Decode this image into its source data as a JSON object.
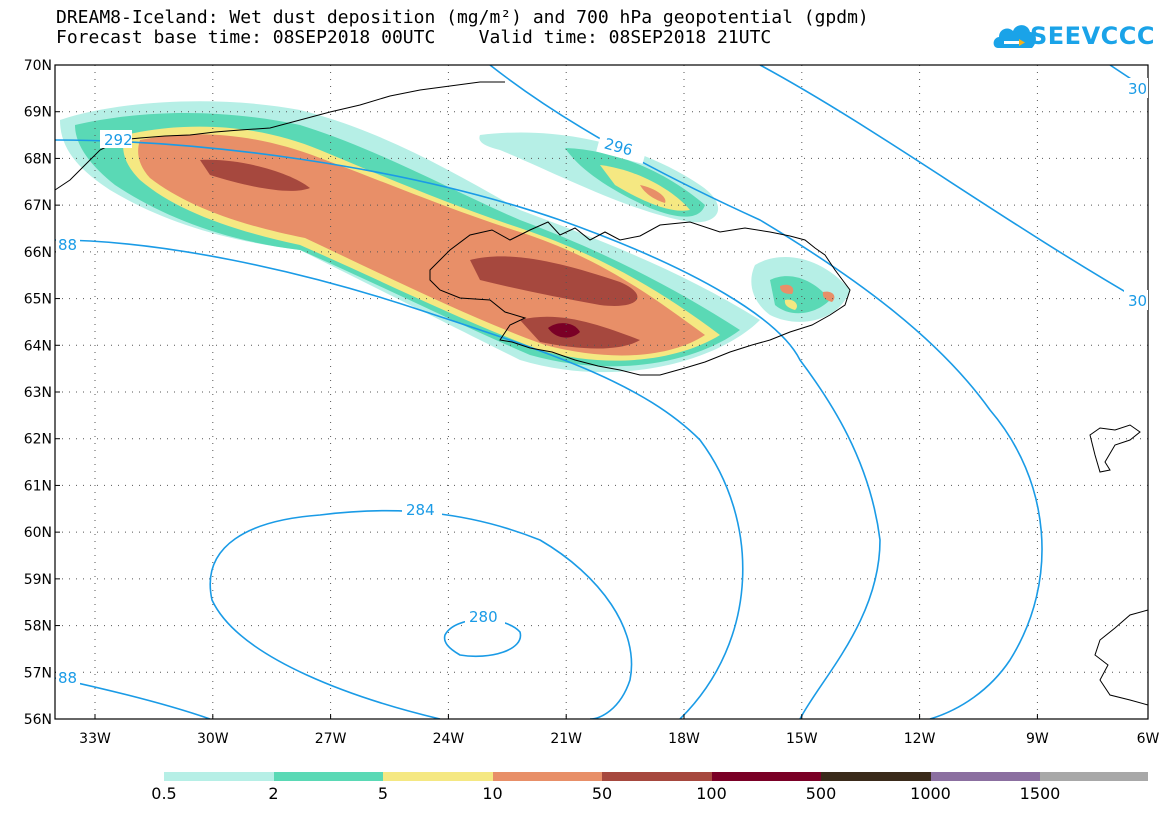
{
  "title": {
    "line1": "DREAM8-Iceland: Wet dust deposition (mg/m²) and 700 hPa geopotential (gpdm)",
    "line2": "Forecast base time: 08SEP2018 00UTC    Valid time: 08SEP2018 21UTC"
  },
  "logo": {
    "text": "SEEVCCC",
    "icon": "cloud-icon",
    "color": "#1aa3e8"
  },
  "map": {
    "lat_labels": [
      "70N",
      "69N",
      "68N",
      "67N",
      "66N",
      "65N",
      "64N",
      "63N",
      "62N",
      "61N",
      "60N",
      "59N",
      "58N",
      "57N",
      "56N"
    ],
    "lon_labels": [
      "33W",
      "30W",
      "27W",
      "24W",
      "21W",
      "18W",
      "15W",
      "12W",
      "9W",
      "6W"
    ],
    "contour_color": "#1a9be6",
    "contour_labels": [
      "292",
      "296",
      "30",
      "30",
      "88",
      "88",
      "284",
      "280"
    ]
  },
  "legend": {
    "labels": [
      "0.5",
      "2",
      "5",
      "10",
      "50",
      "100",
      "500",
      "1000",
      "1500"
    ],
    "colors": [
      "#b6efe6",
      "#5ad9b5",
      "#f5e882",
      "#e88f68",
      "#a6483e",
      "#7a0026",
      "#3a2a1a",
      "#8b6fa0",
      "#a8a8a8"
    ]
  }
}
